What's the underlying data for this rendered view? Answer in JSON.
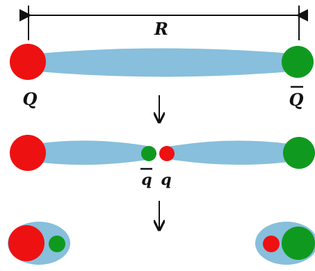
{
  "labels": {
    "separation": "R",
    "heavy_quark": "Q",
    "heavy_antiquark": "Q",
    "light_antiquark": "q",
    "light_quark": "q"
  },
  "colors": {
    "red": "#ee1111",
    "green": "#0f9a1f",
    "flux_tube": "#87bfdc",
    "ink": "#111111"
  }
}
